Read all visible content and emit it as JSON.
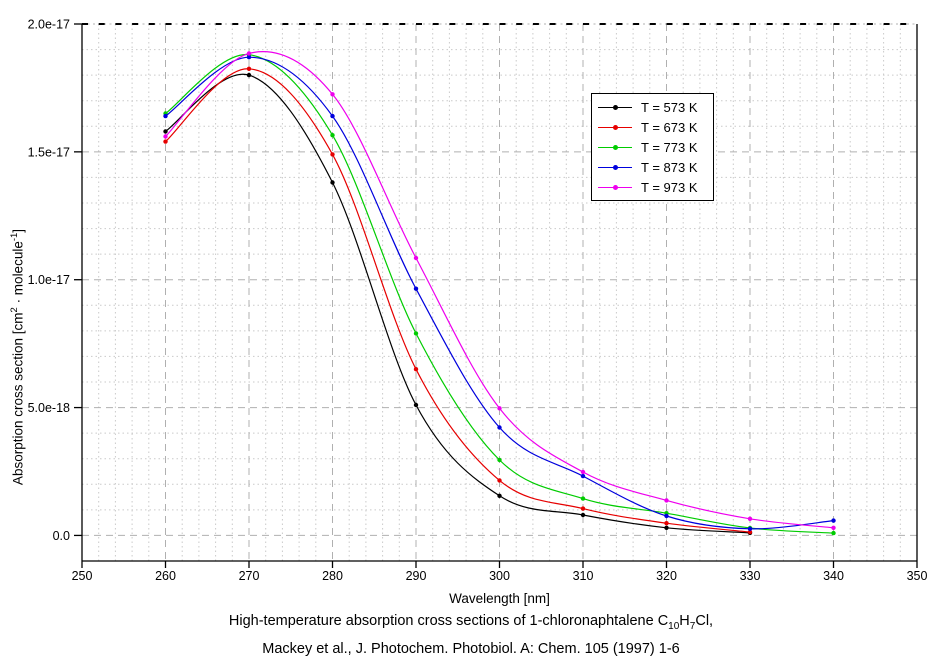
{
  "figure": {
    "background": "#ffffff",
    "caption_line1_parts": {
      "t1": "High-temperature absorption cross sections of 1-chloronaphtalene C",
      "sub1": "10",
      "t2": "H",
      "sub2": "7",
      "t3": "Cl,"
    },
    "caption_line2": "Mackey et al., J. Photochem. Photobiol. A: Chem. 105 (1997) 1-6"
  },
  "chart_data": {
    "type": "line",
    "xlabel": "Wavelength [nm]",
    "ylabel_parts": {
      "t1": "Absorption cross section [cm",
      "sup1": "2",
      "t2": " · molecule",
      "sup2": "-1",
      "t3": "]"
    },
    "x_range_nm": [
      250,
      350
    ],
    "x_major_tick_step_nm": 10,
    "x_minor_tick_step_nm": 2,
    "y_range_e18": [
      -1,
      20
    ],
    "y_major_tick_step_e18": 5,
    "y_minor_tick_step_e18": 1,
    "y_value_unit": "cm2 molecule-1, values below in units of 1e-18",
    "x_tick_labels": [
      "250",
      "260",
      "270",
      "280",
      "290",
      "300",
      "310",
      "320",
      "330",
      "340",
      "350"
    ],
    "y_ticks": [
      {
        "value_e18": 20,
        "label": "2.0e-17"
      },
      {
        "value_e18": 15,
        "label": "1.5e-17"
      },
      {
        "value_e18": 10,
        "label": "1.0e-17"
      },
      {
        "value_e18": 5,
        "label": "5.0e-18"
      },
      {
        "value_e18": 0,
        "label": "0.0"
      }
    ],
    "grid": {
      "major_color": "#b0b0b0",
      "minor_color": "#cacaca",
      "axis_color": "#000000",
      "grid_on": true
    },
    "legend_position": "top-right-inside",
    "series": [
      {
        "name": "T = 573 K",
        "color": "#000000",
        "x_nm": [
          260,
          270,
          280,
          290,
          300,
          310,
          320,
          330
        ],
        "y_e18": [
          15.8,
          18.0,
          13.8,
          5.1,
          1.55,
          0.8,
          0.3,
          0.1
        ]
      },
      {
        "name": "T = 673 K",
        "color": "#e60000",
        "x_nm": [
          260,
          270,
          280,
          290,
          300,
          310,
          320,
          330
        ],
        "y_e18": [
          15.4,
          18.25,
          14.9,
          6.5,
          2.15,
          1.05,
          0.48,
          0.13
        ]
      },
      {
        "name": "T = 773 K",
        "color": "#00cc00",
        "x_nm": [
          260,
          270,
          280,
          290,
          300,
          310,
          320,
          330,
          340
        ],
        "y_e18": [
          16.5,
          18.8,
          15.65,
          7.9,
          2.95,
          1.44,
          0.87,
          0.29,
          0.09
        ]
      },
      {
        "name": "T = 873 K",
        "color": "#0000dd",
        "x_nm": [
          260,
          270,
          280,
          290,
          300,
          310,
          320,
          330,
          340
        ],
        "y_e18": [
          16.4,
          18.7,
          16.4,
          9.65,
          4.22,
          2.32,
          0.76,
          0.26,
          0.58
        ]
      },
      {
        "name": "T = 973 K",
        "color": "#ee00ee",
        "x_nm": [
          260,
          270,
          280,
          290,
          300,
          310,
          320,
          330,
          340
        ],
        "y_e18": [
          15.6,
          18.85,
          17.25,
          10.85,
          4.97,
          2.48,
          1.37,
          0.65,
          0.3
        ]
      }
    ]
  }
}
